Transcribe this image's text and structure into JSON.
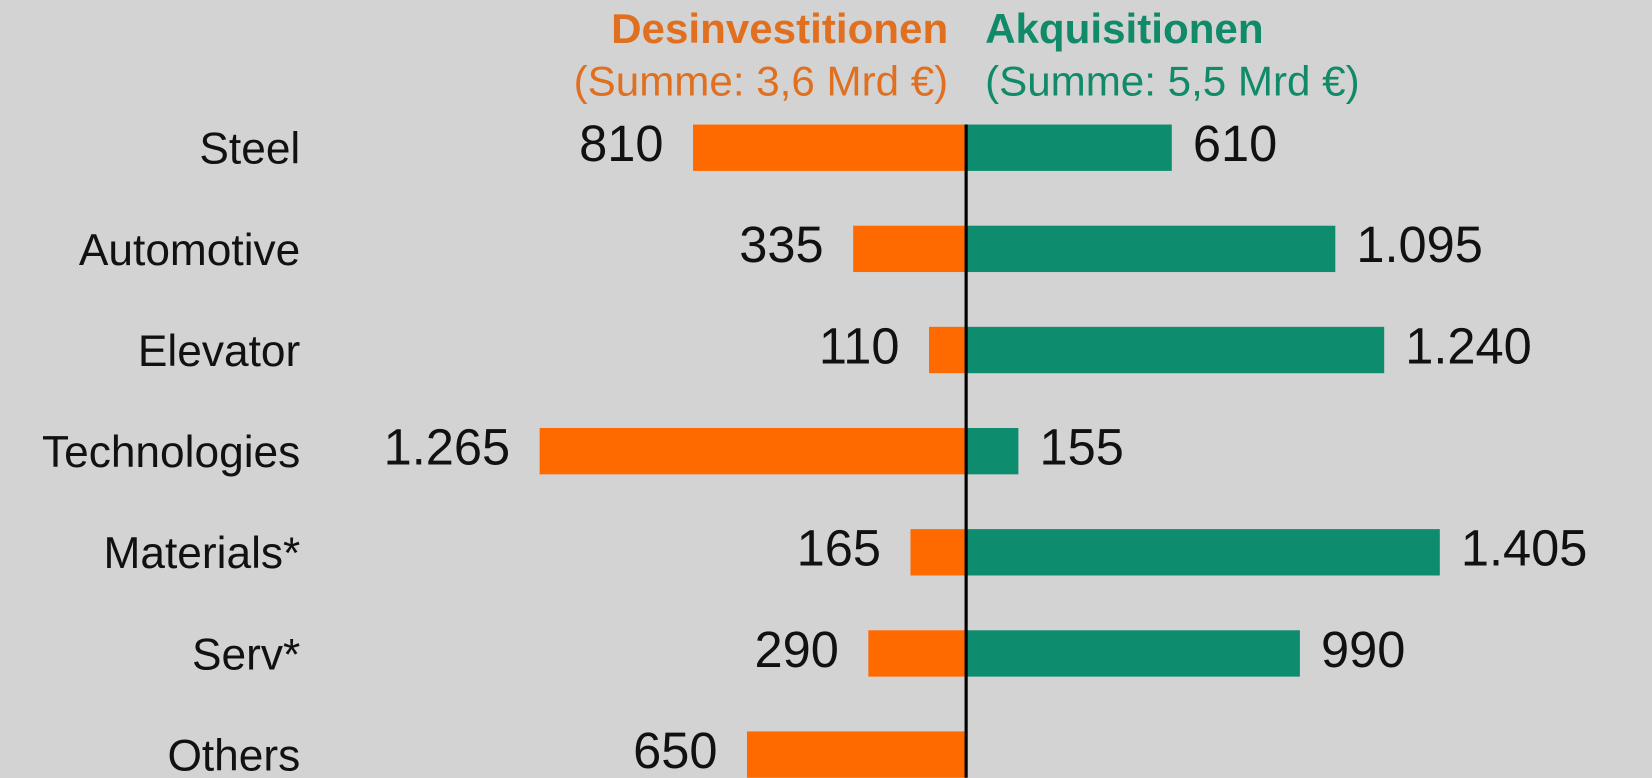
{
  "chart_data": {
    "type": "diverging_bar",
    "categories": [
      "Steel",
      "Automotive",
      "Elevator",
      "Technologies",
      "Materials*",
      "Serv*",
      "Others"
    ],
    "series": [
      {
        "name": "Desinvestitionen",
        "total_label": "(Summe: 3,6 Mrd €)",
        "color": "#ff6a00",
        "title_color": "#e07020",
        "side": "left",
        "values": [
          810,
          335,
          110,
          1265,
          165,
          290,
          650
        ],
        "value_labels": [
          "810",
          "335",
          "110",
          "1.265",
          "165",
          "290",
          "650"
        ]
      },
      {
        "name": "Akquisitionen",
        "total_label": "(Summe: 5,5 Mrd €)",
        "color": "#0e8c6e",
        "title_color": "#118a6a",
        "side": "right",
        "values": [
          610,
          1095,
          1240,
          155,
          1405,
          990,
          null
        ],
        "value_labels": [
          "610",
          "1.095",
          "1.240",
          "155",
          "1.405",
          "990",
          null
        ]
      }
    ]
  }
}
